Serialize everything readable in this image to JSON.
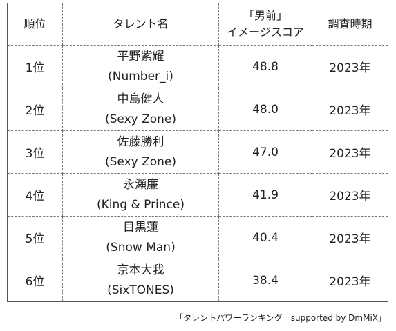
{
  "table": {
    "headers": {
      "rank": "順位",
      "talent": "タレント名",
      "score_line1": "「男前」",
      "score_line2": "イメージスコア",
      "period": "調査時期"
    },
    "rows": [
      {
        "rank": "1位",
        "name": "平野紫耀",
        "group": "(Number_i)",
        "score": "48.8",
        "period": "2023年"
      },
      {
        "rank": "2位",
        "name": "中島健人",
        "group": "(Sexy Zone)",
        "score": "48.0",
        "period": "2023年"
      },
      {
        "rank": "3位",
        "name": "佐藤勝利",
        "group": "(Sexy Zone)",
        "score": "47.0",
        "period": "2023年"
      },
      {
        "rank": "4位",
        "name": "永瀬廉",
        "group": "(King & Prince)",
        "score": "41.9",
        "period": "2023年"
      },
      {
        "rank": "5位",
        "name": "目黒蓮",
        "group": "(Snow Man)",
        "score": "40.4",
        "period": "2023年"
      },
      {
        "rank": "6位",
        "name": "京本大我",
        "group": "(SixTONES)",
        "score": "38.4",
        "period": "2023年"
      }
    ]
  },
  "caption": "「タレントパワーランキング　supported by DmMiX」"
}
